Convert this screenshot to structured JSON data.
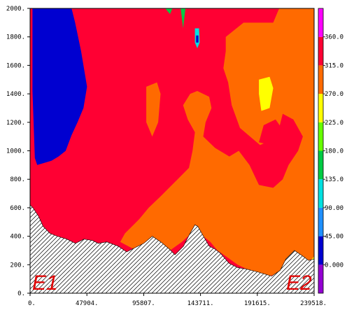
{
  "chart_data": {
    "type": "heatmap",
    "title": "",
    "xlabel": "",
    "ylabel": "",
    "x_ticks": [
      "0.",
      "47904.",
      "95807.",
      "143711.",
      "191615.",
      "239518."
    ],
    "x_tick_values": [
      0,
      47904,
      95807,
      143711,
      191615,
      239518
    ],
    "xlim": [
      0,
      239518
    ],
    "y_ticks": [
      "0.",
      "200.",
      "400.",
      "600.",
      "800.",
      "1000.",
      "1200.",
      "1400.",
      "1600.",
      "1800.",
      "2000."
    ],
    "y_tick_values": [
      0,
      200,
      400,
      600,
      800,
      1000,
      1200,
      1400,
      1600,
      1800,
      2000
    ],
    "ylim": [
      0,
      2000
    ],
    "colorbar": {
      "labels": [
        "0.000",
        "45.00",
        "90.00",
        "135.0",
        "180.0",
        "225.0",
        "270.0",
        "315.0",
        "360.0"
      ],
      "levels": [
        0,
        45,
        90,
        135,
        180,
        225,
        270,
        315,
        360
      ],
      "colors": [
        "#9400d3",
        "#0000d0",
        "#1e90ff",
        "#00e0e0",
        "#00cc44",
        "#66ff00",
        "#ffff00",
        "#ff6a00",
        "#ff0033",
        "#ff00ff"
      ]
    },
    "terrain_profile": {
      "x": [
        0,
        2400,
        7200,
        11000,
        16800,
        23000,
        31000,
        38300,
        45500,
        52700,
        57500,
        64700,
        74300,
        81500,
        86200,
        95800,
        103000,
        110200,
        117400,
        122200,
        129400,
        134200,
        139000,
        141400,
        146200,
        151000,
        155800,
        160600,
        167800,
        175000,
        182100,
        191700,
        203700,
        210900,
        215700,
        222900,
        230100,
        234900,
        239518
      ],
      "y": [
        620,
        600,
        540,
        470,
        420,
        400,
        380,
        350,
        380,
        370,
        350,
        360,
        330,
        290,
        310,
        350,
        400,
        360,
        310,
        270,
        330,
        410,
        480,
        470,
        400,
        330,
        310,
        280,
        210,
        180,
        170,
        150,
        120,
        160,
        240,
        300,
        260,
        230,
        240
      ]
    },
    "field_regions": [
      {
        "value": 337,
        "polygon": [
          [
            0,
            0
          ],
          [
            239518,
            0
          ],
          [
            239518,
            2000
          ],
          [
            0,
            2000
          ]
        ]
      },
      {
        "value": 292,
        "polygon": [
          [
            165000,
            1800
          ],
          [
            180000,
            1900
          ],
          [
            205000,
            1900
          ],
          [
            210000,
            2000
          ],
          [
            239518,
            2000
          ],
          [
            239518,
            200
          ],
          [
            201000,
            120
          ],
          [
            185000,
            160
          ],
          [
            175000,
            200
          ],
          [
            165000,
            260
          ],
          [
            158000,
            300
          ],
          [
            152000,
            360
          ],
          [
            146000,
            400
          ],
          [
            141000,
            460
          ],
          [
            128000,
            360
          ],
          [
            118000,
            300
          ],
          [
            100000,
            280
          ],
          [
            90000,
            300
          ],
          [
            85000,
            320
          ],
          [
            76000,
            360
          ],
          [
            80000,
            420
          ],
          [
            92000,
            520
          ],
          [
            100000,
            600
          ],
          [
            110000,
            680
          ],
          [
            122000,
            780
          ],
          [
            134000,
            880
          ],
          [
            137000,
            1000
          ],
          [
            139000,
            1130
          ],
          [
            133000,
            1220
          ],
          [
            129000,
            1320
          ],
          [
            135000,
            1400
          ],
          [
            141000,
            1420
          ],
          [
            151000,
            1380
          ],
          [
            153000,
            1300
          ],
          [
            148000,
            1200
          ],
          [
            146000,
            1100
          ],
          [
            156000,
            1020
          ],
          [
            168000,
            960
          ],
          [
            176000,
            1000
          ],
          [
            185000,
            900
          ],
          [
            193000,
            760
          ],
          [
            205000,
            740
          ],
          [
            213000,
            800
          ],
          [
            218000,
            900
          ],
          [
            226000,
            1000
          ],
          [
            230000,
            1100
          ],
          [
            222000,
            1220
          ],
          [
            213000,
            1260
          ],
          [
            210000,
            1160
          ],
          [
            204000,
            1080
          ],
          [
            194000,
            1040
          ],
          [
            177000,
            1160
          ],
          [
            170000,
            1320
          ],
          [
            167000,
            1480
          ],
          [
            163000,
            1580
          ],
          [
            165000,
            1700
          ]
        ]
      },
      {
        "value": 292,
        "polygon": [
          [
            98000,
            1450
          ],
          [
            107000,
            1480
          ],
          [
            110000,
            1400
          ],
          [
            108000,
            1200
          ],
          [
            103000,
            1100
          ],
          [
            98000,
            1200
          ]
        ]
      },
      {
        "value": 337,
        "polygon": [
          [
            193000,
            1060
          ],
          [
            203000,
            1040
          ],
          [
            209000,
            1080
          ],
          [
            212000,
            1160
          ],
          [
            207000,
            1220
          ],
          [
            197000,
            1180
          ]
        ]
      },
      {
        "value": 247,
        "polygon": [
          [
            193000,
            1500
          ],
          [
            202000,
            1520
          ],
          [
            205000,
            1440
          ],
          [
            202000,
            1300
          ],
          [
            195000,
            1280
          ],
          [
            193000,
            1400
          ]
        ]
      },
      {
        "value": 247,
        "polygon": [
          [
            234000,
            200
          ],
          [
            239518,
            260
          ],
          [
            239518,
            120
          ],
          [
            232000,
            100
          ],
          [
            228000,
            110
          ],
          [
            230000,
            160
          ]
        ]
      },
      {
        "value": 22,
        "polygon": [
          [
            2000,
            2000
          ],
          [
            35000,
            2000
          ],
          [
            38000,
            1900
          ],
          [
            43000,
            1700
          ],
          [
            48000,
            1450
          ],
          [
            45000,
            1300
          ],
          [
            40000,
            1200
          ],
          [
            35000,
            1110
          ],
          [
            30000,
            1000
          ],
          [
            24000,
            960
          ],
          [
            18000,
            930
          ],
          [
            10000,
            910
          ],
          [
            6000,
            900
          ],
          [
            4000,
            950
          ],
          [
            2000,
            1420
          ]
        ]
      },
      {
        "value": 112,
        "polygon": [
          [
            139000,
            1860
          ],
          [
            142500,
            1860
          ],
          [
            143000,
            1760
          ],
          [
            141000,
            1720
          ],
          [
            139000,
            1760
          ]
        ]
      },
      {
        "value": 22,
        "polygon": [
          [
            140000,
            1810
          ],
          [
            142000,
            1810
          ],
          [
            142000,
            1760
          ],
          [
            140000,
            1760
          ]
        ]
      },
      {
        "value": 157,
        "polygon": [
          [
            114000,
            2000
          ],
          [
            120000,
            2000
          ],
          [
            118000,
            1960
          ]
        ]
      },
      {
        "value": 157,
        "polygon": [
          [
            127000,
            2000
          ],
          [
            131000,
            2000
          ],
          [
            129000,
            1860
          ]
        ]
      }
    ]
  },
  "annotations": {
    "left_label": "E1",
    "right_label": "E2"
  }
}
